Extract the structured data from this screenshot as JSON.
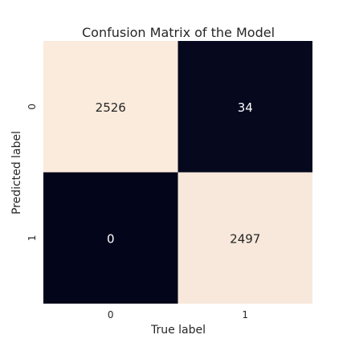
{
  "chart_data": {
    "type": "heatmap",
    "title": "Confusion Matrix of the Model",
    "xlabel": "True label",
    "ylabel": "Predicted label",
    "x_categories": [
      "0",
      "1"
    ],
    "y_categories": [
      "0",
      "1"
    ],
    "values": [
      [
        2526,
        34
      ],
      [
        0,
        2497
      ]
    ],
    "value_labels": [
      [
        "2526",
        "34"
      ],
      [
        "0",
        "2497"
      ]
    ],
    "colorbar": false,
    "colors": {
      "high": "#faebdd",
      "low": "#03051a",
      "text_on_high": "#262626",
      "text_on_low": "#ffffff"
    }
  }
}
